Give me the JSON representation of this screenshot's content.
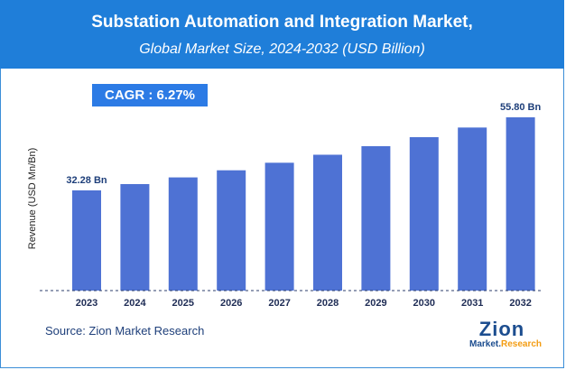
{
  "header": {
    "title": "Substation Automation and Integration Market,",
    "subtitle": "Global Market Size, 2024-2032 (USD Billion)"
  },
  "cagr": {
    "label": "CAGR :  6.27%"
  },
  "source": {
    "text": "Source: Zion Market Research"
  },
  "logo": {
    "name": "Zion",
    "tagline_left": "Market.",
    "tagline_right": "Research"
  },
  "colors": {
    "bar": "#4e72d4",
    "header": "#1f7ed9",
    "cagr": "#2c7be5",
    "baseline": "#2b3d6b"
  },
  "chart_data": {
    "type": "bar",
    "categories": [
      "2023",
      "2024",
      "2025",
      "2026",
      "2027",
      "2028",
      "2029",
      "2030",
      "2031",
      "2032"
    ],
    "values": [
      32.28,
      34.3,
      36.45,
      38.74,
      41.17,
      43.75,
      46.5,
      49.41,
      52.51,
      55.8
    ],
    "data_labels": [
      "32.28 Bn",
      "",
      "",
      "",
      "",
      "",
      "",
      "",
      "",
      "55.80 Bn"
    ],
    "ylabel": "Revenue (USD Mn/Bn)",
    "ylim": [
      0,
      60
    ],
    "grid": false
  }
}
